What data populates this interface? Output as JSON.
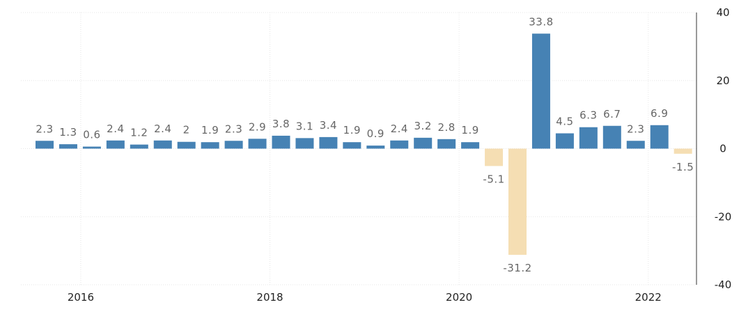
{
  "chart_data": {
    "type": "bar",
    "values": [
      2.3,
      1.3,
      0.6,
      2.4,
      1.2,
      2.4,
      2,
      1.9,
      2.3,
      2.9,
      3.8,
      3.1,
      3.4,
      1.9,
      0.9,
      2.4,
      3.2,
      2.8,
      1.9,
      -5.1,
      -31.2,
      33.8,
      4.5,
      6.3,
      6.7,
      2.3,
      6.9,
      -1.5
    ],
    "value_labels": [
      "2.3",
      "1.3",
      "0.6",
      "2.4",
      "1.2",
      "2.4",
      "2",
      "1.9",
      "2.3",
      "2.9",
      "3.8",
      "3.1",
      "3.4",
      "1.9",
      "0.9",
      "2.4",
      "3.2",
      "2.8",
      "1.9",
      "-5.1",
      "-31.2",
      "33.8",
      "4.5",
      "6.3",
      "6.7",
      "2.3",
      "6.9",
      "-1.5"
    ],
    "x_ticks": [
      "2016",
      "2018",
      "2020",
      "2022"
    ],
    "y_ticks": [
      40,
      20,
      0,
      -20,
      -40
    ],
    "ylim": [
      -40,
      40
    ],
    "grid": true,
    "colors": {
      "positive": "#4682b4",
      "negative": "#f5deb3"
    }
  }
}
